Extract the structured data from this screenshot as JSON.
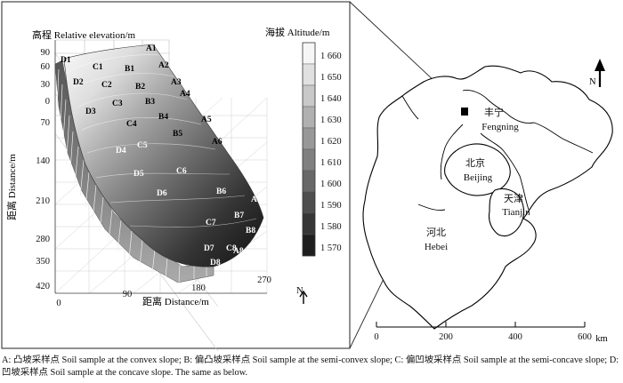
{
  "left_panel": {
    "y_axis_title": "高程 Relative elevation/m",
    "y_ticks": [
      "90",
      "60",
      "30",
      "0",
      "70",
      "140",
      "210",
      "280",
      "350",
      "420"
    ],
    "z_axis_title": "距离 Distance/m",
    "x_ticks": [
      "0",
      "90",
      "180",
      "270"
    ],
    "x_axis_title": "距离 Distance/m",
    "north_label": "N"
  },
  "legend": {
    "title": "海拔 Altitude/m",
    "values": [
      "1 660",
      "1 650",
      "1 640",
      "1 630",
      "1 620",
      "1 610",
      "1 600",
      "1 590",
      "1 580",
      "1 570"
    ],
    "colors": [
      "#f6f6f6",
      "#e0e0e0",
      "#c8c8c8",
      "#b0b0b0",
      "#989898",
      "#808080",
      "#686868",
      "#4e4e4e",
      "#363636",
      "#1e1e1e"
    ]
  },
  "sample_points": {
    "A": [
      "A1",
      "A2",
      "A3",
      "A4",
      "A5",
      "A6",
      "A7",
      "A8"
    ],
    "B": [
      "B1",
      "B2",
      "B3",
      "B4",
      "B5",
      "B6",
      "B7",
      "B8"
    ],
    "C": [
      "C1",
      "C2",
      "C3",
      "C4",
      "C5",
      "C6",
      "C7",
      "C8"
    ],
    "D": [
      "D1",
      "D2",
      "D3",
      "D4",
      "D5",
      "D6",
      "D7",
      "D8"
    ]
  },
  "map": {
    "north_label": "N",
    "regions": [
      {
        "id": "fengning",
        "cn": "丰宁",
        "en": "Fengning"
      },
      {
        "id": "beijing",
        "cn": "北京",
        "en": "Beijing"
      },
      {
        "id": "tianjin",
        "cn": "天津",
        "en": "Tianjin"
      },
      {
        "id": "hebei",
        "cn": "河北",
        "en": "Hebei"
      }
    ],
    "scale_ticks": [
      "0",
      "200",
      "400",
      "600"
    ],
    "scale_unit": "km"
  },
  "caption": "A: 凸坡采样点 Soil sample at the convex slope; B: 偏凸坡采样点 Soil sample at the semi-convex slope; C: 偏凹坡采样点 Soil sample at the semi-concave slope; D: 凹坡采样点 Soil sample at the concave slope. The same as below."
}
